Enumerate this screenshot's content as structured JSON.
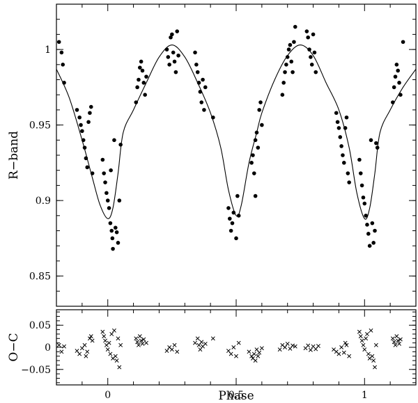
{
  "chart_data": [
    {
      "type": "scatter",
      "panel": "main",
      "xlabel": "",
      "ylabel": "R−band",
      "xlim": [
        -0.2,
        1.2
      ],
      "ylim": [
        0.83,
        1.03
      ],
      "yticks": [
        0.85,
        0.9,
        0.95,
        1
      ],
      "ytick_labels": [
        "0.85",
        "0.9",
        "0.95",
        "1"
      ],
      "xticks": [
        0,
        0.5,
        1
      ],
      "marker": "filled-circle",
      "model_curve": {
        "x": [
          -0.2,
          -0.15,
          -0.1,
          -0.06,
          -0.03,
          0.0,
          0.02,
          0.04,
          0.06,
          0.1,
          0.15,
          0.2,
          0.25,
          0.3,
          0.35,
          0.4,
          0.44,
          0.47,
          0.5,
          0.52,
          0.55,
          0.58,
          0.6,
          0.65,
          0.7,
          0.75,
          0.8,
          0.85,
          0.9,
          0.94,
          0.97,
          1.0,
          1.02,
          1.04,
          1.06,
          1.1,
          1.15,
          1.2
        ],
        "y": [
          0.987,
          0.968,
          0.94,
          0.915,
          0.897,
          0.888,
          0.895,
          0.918,
          0.945,
          0.96,
          0.978,
          0.995,
          1.003,
          0.995,
          0.978,
          0.958,
          0.935,
          0.907,
          0.89,
          0.897,
          0.925,
          0.945,
          0.958,
          0.98,
          0.996,
          1.003,
          0.996,
          0.978,
          0.96,
          0.935,
          0.905,
          0.888,
          0.895,
          0.918,
          0.945,
          0.96,
          0.975,
          0.987
        ]
      },
      "points": [
        {
          "x": -0.19,
          "y": 1.005
        },
        {
          "x": -0.18,
          "y": 0.998
        },
        {
          "x": -0.175,
          "y": 0.99
        },
        {
          "x": -0.17,
          "y": 0.978
        },
        {
          "x": -0.12,
          "y": 0.96
        },
        {
          "x": -0.11,
          "y": 0.955
        },
        {
          "x": -0.105,
          "y": 0.95
        },
        {
          "x": -0.1,
          "y": 0.946
        },
        {
          "x": -0.095,
          "y": 0.94
        },
        {
          "x": -0.09,
          "y": 0.935
        },
        {
          "x": -0.085,
          "y": 0.928
        },
        {
          "x": -0.08,
          "y": 0.922
        },
        {
          "x": -0.075,
          "y": 0.952
        },
        {
          "x": -0.07,
          "y": 0.958
        },
        {
          "x": -0.065,
          "y": 0.962
        },
        {
          "x": -0.06,
          "y": 0.918
        },
        {
          "x": -0.02,
          "y": 0.927
        },
        {
          "x": -0.015,
          "y": 0.918
        },
        {
          "x": -0.01,
          "y": 0.912
        },
        {
          "x": -0.005,
          "y": 0.905
        },
        {
          "x": 0.0,
          "y": 0.9
        },
        {
          "x": 0.005,
          "y": 0.895
        },
        {
          "x": 0.01,
          "y": 0.885
        },
        {
          "x": 0.012,
          "y": 0.92
        },
        {
          "x": 0.015,
          "y": 0.88
        },
        {
          "x": 0.018,
          "y": 0.875
        },
        {
          "x": 0.02,
          "y": 0.868
        },
        {
          "x": 0.025,
          "y": 0.94
        },
        {
          "x": 0.03,
          "y": 0.882
        },
        {
          "x": 0.035,
          "y": 0.879
        },
        {
          "x": 0.04,
          "y": 0.872
        },
        {
          "x": 0.045,
          "y": 0.9
        },
        {
          "x": 0.05,
          "y": 0.937
        },
        {
          "x": 0.11,
          "y": 0.965
        },
        {
          "x": 0.115,
          "y": 0.975
        },
        {
          "x": 0.12,
          "y": 0.98
        },
        {
          "x": 0.125,
          "y": 0.988
        },
        {
          "x": 0.13,
          "y": 0.992
        },
        {
          "x": 0.135,
          "y": 0.986
        },
        {
          "x": 0.14,
          "y": 0.978
        },
        {
          "x": 0.145,
          "y": 0.97
        },
        {
          "x": 0.15,
          "y": 0.982
        },
        {
          "x": 0.23,
          "y": 1.0
        },
        {
          "x": 0.235,
          "y": 0.995
        },
        {
          "x": 0.24,
          "y": 0.99
        },
        {
          "x": 0.245,
          "y": 1.008
        },
        {
          "x": 0.25,
          "y": 1.01
        },
        {
          "x": 0.255,
          "y": 0.998
        },
        {
          "x": 0.26,
          "y": 0.992
        },
        {
          "x": 0.265,
          "y": 0.985
        },
        {
          "x": 0.27,
          "y": 1.012
        },
        {
          "x": 0.275,
          "y": 0.996
        },
        {
          "x": 0.34,
          "y": 0.998
        },
        {
          "x": 0.345,
          "y": 0.99
        },
        {
          "x": 0.35,
          "y": 0.985
        },
        {
          "x": 0.355,
          "y": 0.978
        },
        {
          "x": 0.36,
          "y": 0.972
        },
        {
          "x": 0.365,
          "y": 0.965
        },
        {
          "x": 0.37,
          "y": 0.98
        },
        {
          "x": 0.375,
          "y": 0.96
        },
        {
          "x": 0.38,
          "y": 0.975
        },
        {
          "x": 0.41,
          "y": 0.955
        },
        {
          "x": 0.47,
          "y": 0.895
        },
        {
          "x": 0.475,
          "y": 0.888
        },
        {
          "x": 0.48,
          "y": 0.88
        },
        {
          "x": 0.485,
          "y": 0.885
        },
        {
          "x": 0.49,
          "y": 0.892
        },
        {
          "x": 0.5,
          "y": 0.875
        },
        {
          "x": 0.505,
          "y": 0.903
        },
        {
          "x": 0.51,
          "y": 0.89
        },
        {
          "x": 0.56,
          "y": 0.925
        },
        {
          "x": 0.565,
          "y": 0.93
        },
        {
          "x": 0.57,
          "y": 0.918
        },
        {
          "x": 0.575,
          "y": 0.94
        },
        {
          "x": 0.58,
          "y": 0.945
        },
        {
          "x": 0.585,
          "y": 0.935
        },
        {
          "x": 0.59,
          "y": 0.96
        },
        {
          "x": 0.595,
          "y": 0.965
        },
        {
          "x": 0.6,
          "y": 0.95
        },
        {
          "x": 0.575,
          "y": 0.903
        },
        {
          "x": 0.68,
          "y": 0.97
        },
        {
          "x": 0.685,
          "y": 0.978
        },
        {
          "x": 0.69,
          "y": 0.985
        },
        {
          "x": 0.695,
          "y": 0.99
        },
        {
          "x": 0.7,
          "y": 0.995
        },
        {
          "x": 0.705,
          "y": 1.0
        },
        {
          "x": 0.71,
          "y": 1.003
        },
        {
          "x": 0.715,
          "y": 0.992
        },
        {
          "x": 0.72,
          "y": 0.985
        },
        {
          "x": 0.725,
          "y": 1.005
        },
        {
          "x": 0.73,
          "y": 1.015
        },
        {
          "x": 0.775,
          "y": 1.012
        },
        {
          "x": 0.78,
          "y": 1.008
        },
        {
          "x": 0.785,
          "y": 1.0
        },
        {
          "x": 0.79,
          "y": 0.995
        },
        {
          "x": 0.795,
          "y": 0.99
        },
        {
          "x": 0.8,
          "y": 1.01
        },
        {
          "x": 0.805,
          "y": 0.998
        },
        {
          "x": 0.81,
          "y": 0.985
        },
        {
          "x": 0.89,
          "y": 0.958
        },
        {
          "x": 0.895,
          "y": 0.952
        },
        {
          "x": 0.9,
          "y": 0.948
        },
        {
          "x": 0.905,
          "y": 0.942
        },
        {
          "x": 0.91,
          "y": 0.936
        },
        {
          "x": 0.915,
          "y": 0.93
        },
        {
          "x": 0.92,
          "y": 0.925
        },
        {
          "x": 0.925,
          "y": 0.948
        },
        {
          "x": 0.93,
          "y": 0.955
        },
        {
          "x": 0.935,
          "y": 0.918
        },
        {
          "x": 0.94,
          "y": 0.912
        },
        {
          "x": 0.98,
          "y": 0.927
        },
        {
          "x": 0.985,
          "y": 0.918
        },
        {
          "x": 0.99,
          "y": 0.91
        },
        {
          "x": 0.995,
          "y": 0.902
        },
        {
          "x": 1.0,
          "y": 0.898
        },
        {
          "x": 1.005,
          "y": 0.89
        },
        {
          "x": 1.01,
          "y": 0.884
        },
        {
          "x": 1.015,
          "y": 0.878
        },
        {
          "x": 1.02,
          "y": 0.87
        },
        {
          "x": 1.025,
          "y": 0.94
        },
        {
          "x": 1.03,
          "y": 0.885
        },
        {
          "x": 1.035,
          "y": 0.872
        },
        {
          "x": 1.04,
          "y": 0.88
        },
        {
          "x": 1.045,
          "y": 0.938
        },
        {
          "x": 1.05,
          "y": 0.935
        },
        {
          "x": 1.11,
          "y": 0.965
        },
        {
          "x": 1.115,
          "y": 0.975
        },
        {
          "x": 1.12,
          "y": 0.982
        },
        {
          "x": 1.125,
          "y": 0.99
        },
        {
          "x": 1.13,
          "y": 0.986
        },
        {
          "x": 1.135,
          "y": 0.978
        },
        {
          "x": 1.14,
          "y": 0.97
        },
        {
          "x": 1.15,
          "y": 1.005
        }
      ]
    },
    {
      "type": "scatter",
      "panel": "residuals",
      "xlabel": "Phase",
      "ylabel": "O−C",
      "xlim": [
        -0.2,
        1.2
      ],
      "ylim": [
        -0.085,
        0.085
      ],
      "yticks": [
        -0.05,
        0,
        0.05
      ],
      "ytick_labels": [
        "−0.05",
        "0",
        "0.05"
      ],
      "xticks": [
        0,
        0.5,
        1
      ],
      "xtick_labels": [
        "0",
        "0.5",
        "1"
      ],
      "marker": "cross",
      "points": [
        {
          "x": -0.19,
          "y": 0.005
        },
        {
          "x": -0.18,
          "y": -0.01
        },
        {
          "x": -0.17,
          "y": 0.002
        },
        {
          "x": -0.12,
          "y": -0.008
        },
        {
          "x": -0.11,
          "y": -0.015
        },
        {
          "x": -0.1,
          "y": -0.002
        },
        {
          "x": -0.09,
          "y": 0.005
        },
        {
          "x": -0.085,
          "y": -0.02
        },
        {
          "x": -0.08,
          "y": -0.01
        },
        {
          "x": -0.07,
          "y": 0.02
        },
        {
          "x": -0.065,
          "y": 0.025
        },
        {
          "x": -0.06,
          "y": 0.015
        },
        {
          "x": -0.02,
          "y": 0.035
        },
        {
          "x": -0.015,
          "y": 0.025
        },
        {
          "x": -0.01,
          "y": 0.015
        },
        {
          "x": -0.005,
          "y": 0.005
        },
        {
          "x": 0.0,
          "y": -0.005
        },
        {
          "x": 0.005,
          "y": 0.01
        },
        {
          "x": 0.01,
          "y": -0.015
        },
        {
          "x": 0.015,
          "y": 0.03
        },
        {
          "x": 0.02,
          "y": -0.025
        },
        {
          "x": 0.025,
          "y": 0.038
        },
        {
          "x": 0.03,
          "y": -0.02
        },
        {
          "x": 0.035,
          "y": -0.03
        },
        {
          "x": 0.04,
          "y": 0.02
        },
        {
          "x": 0.045,
          "y": -0.045
        },
        {
          "x": 0.05,
          "y": 0.005
        },
        {
          "x": 0.11,
          "y": 0.02
        },
        {
          "x": 0.115,
          "y": 0.012
        },
        {
          "x": 0.12,
          "y": 0.005
        },
        {
          "x": 0.125,
          "y": 0.025
        },
        {
          "x": 0.13,
          "y": 0.015
        },
        {
          "x": 0.135,
          "y": 0.008
        },
        {
          "x": 0.14,
          "y": 0.018
        },
        {
          "x": 0.15,
          "y": 0.01
        },
        {
          "x": 0.23,
          "y": -0.008
        },
        {
          "x": 0.24,
          "y": 0.0
        },
        {
          "x": 0.25,
          "y": -0.005
        },
        {
          "x": 0.26,
          "y": 0.005
        },
        {
          "x": 0.27,
          "y": -0.01
        },
        {
          "x": 0.34,
          "y": 0.01
        },
        {
          "x": 0.35,
          "y": 0.02
        },
        {
          "x": 0.355,
          "y": 0.005
        },
        {
          "x": 0.36,
          "y": -0.005
        },
        {
          "x": 0.365,
          "y": 0.012
        },
        {
          "x": 0.37,
          "y": 0.002
        },
        {
          "x": 0.38,
          "y": 0.008
        },
        {
          "x": 0.41,
          "y": 0.02
        },
        {
          "x": 0.47,
          "y": -0.008
        },
        {
          "x": 0.48,
          "y": -0.015
        },
        {
          "x": 0.49,
          "y": 0.0
        },
        {
          "x": 0.5,
          "y": -0.02
        },
        {
          "x": 0.51,
          "y": 0.01
        },
        {
          "x": 0.55,
          "y": -0.01
        },
        {
          "x": 0.56,
          "y": -0.02
        },
        {
          "x": 0.565,
          "y": -0.025
        },
        {
          "x": 0.57,
          "y": -0.015
        },
        {
          "x": 0.575,
          "y": -0.03
        },
        {
          "x": 0.58,
          "y": -0.005
        },
        {
          "x": 0.585,
          "y": -0.02
        },
        {
          "x": 0.59,
          "y": -0.012
        },
        {
          "x": 0.6,
          "y": -0.002
        },
        {
          "x": 0.67,
          "y": -0.005
        },
        {
          "x": 0.68,
          "y": 0.005
        },
        {
          "x": 0.69,
          "y": 0.0
        },
        {
          "x": 0.7,
          "y": 0.008
        },
        {
          "x": 0.71,
          "y": -0.003
        },
        {
          "x": 0.72,
          "y": 0.004
        },
        {
          "x": 0.73,
          "y": 0.002
        },
        {
          "x": 0.77,
          "y": -0.002
        },
        {
          "x": 0.78,
          "y": 0.004
        },
        {
          "x": 0.79,
          "y": -0.006
        },
        {
          "x": 0.8,
          "y": 0.002
        },
        {
          "x": 0.81,
          "y": -0.004
        },
        {
          "x": 0.82,
          "y": 0.003
        },
        {
          "x": 0.88,
          "y": -0.005
        },
        {
          "x": 0.89,
          "y": -0.01
        },
        {
          "x": 0.9,
          "y": -0.015
        },
        {
          "x": 0.91,
          "y": 0.0
        },
        {
          "x": 0.92,
          "y": -0.012
        },
        {
          "x": 0.925,
          "y": 0.01
        },
        {
          "x": 0.93,
          "y": 0.005
        },
        {
          "x": 0.94,
          "y": -0.02
        },
        {
          "x": 0.98,
          "y": 0.035
        },
        {
          "x": 0.985,
          "y": 0.025
        },
        {
          "x": 0.99,
          "y": 0.015
        },
        {
          "x": 0.995,
          "y": 0.005
        },
        {
          "x": 1.0,
          "y": -0.005
        },
        {
          "x": 1.005,
          "y": 0.02
        },
        {
          "x": 1.01,
          "y": 0.03
        },
        {
          "x": 1.015,
          "y": -0.015
        },
        {
          "x": 1.02,
          "y": -0.025
        },
        {
          "x": 1.025,
          "y": 0.038
        },
        {
          "x": 1.03,
          "y": -0.02
        },
        {
          "x": 1.035,
          "y": -0.03
        },
        {
          "x": 1.04,
          "y": -0.045
        },
        {
          "x": 1.045,
          "y": 0.005
        },
        {
          "x": 1.11,
          "y": 0.02
        },
        {
          "x": 1.115,
          "y": 0.012
        },
        {
          "x": 1.12,
          "y": 0.005
        },
        {
          "x": 1.125,
          "y": 0.025
        },
        {
          "x": 1.13,
          "y": 0.015
        },
        {
          "x": 1.135,
          "y": 0.008
        },
        {
          "x": 1.14,
          "y": 0.018
        }
      ]
    }
  ]
}
